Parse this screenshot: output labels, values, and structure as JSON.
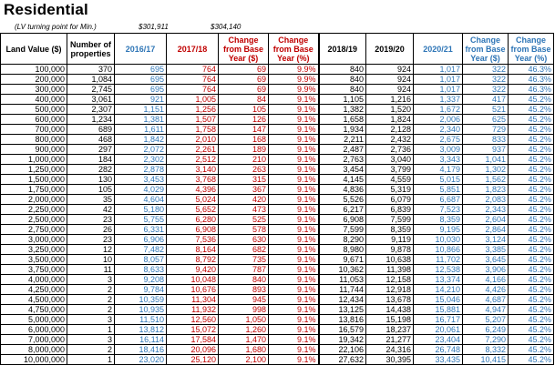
{
  "title": "Residential",
  "note": {
    "label": "(LV turning point for Min.)",
    "value_1": "$301,911",
    "value_2": "$304,140"
  },
  "colors": {
    "black": "#000000",
    "blue": "#2e75b6",
    "red": "#c00000"
  },
  "columns": [
    {
      "label": "Land Value ($)",
      "color": "black"
    },
    {
      "label": "Number of properties",
      "color": "black"
    },
    {
      "label": "2016/17",
      "color": "blue"
    },
    {
      "label": "2017/18",
      "color": "red"
    },
    {
      "label": "Change from Base Year ($)",
      "color": "red"
    },
    {
      "label": "Change from Base Year (%)",
      "color": "red"
    },
    {
      "label": "2018/19",
      "color": "black"
    },
    {
      "label": "2019/20",
      "color": "black"
    },
    {
      "label": "2020/21",
      "color": "blue"
    },
    {
      "label": "Change from Base Year ($)",
      "color": "blue"
    },
    {
      "label": "Change from Base Year (%)",
      "color": "blue"
    }
  ],
  "rows": [
    [
      "100,000",
      "370",
      "695",
      "764",
      "69",
      "9.9%",
      "840",
      "924",
      "1,017",
      "322",
      "46.3%"
    ],
    [
      "200,000",
      "1,084",
      "695",
      "764",
      "69",
      "9.9%",
      "840",
      "924",
      "1,017",
      "322",
      "46.3%"
    ],
    [
      "300,000",
      "2,745",
      "695",
      "764",
      "69",
      "9.9%",
      "840",
      "924",
      "1,017",
      "322",
      "46.3%"
    ],
    [
      "400,000",
      "3,061",
      "921",
      "1,005",
      "84",
      "9.1%",
      "1,105",
      "1,216",
      "1,337",
      "417",
      "45.2%"
    ],
    [
      "500,000",
      "2,307",
      "1,151",
      "1,256",
      "105",
      "9.1%",
      "1,382",
      "1,520",
      "1,672",
      "521",
      "45.2%"
    ],
    [
      "600,000",
      "1,234",
      "1,381",
      "1,507",
      "126",
      "9.1%",
      "1,658",
      "1,824",
      "2,006",
      "625",
      "45.2%"
    ],
    [
      "700,000",
      "689",
      "1,611",
      "1,758",
      "147",
      "9.1%",
      "1,934",
      "2,128",
      "2,340",
      "729",
      "45.2%"
    ],
    [
      "800,000",
      "468",
      "1,842",
      "2,010",
      "168",
      "9.1%",
      "2,211",
      "2,432",
      "2,675",
      "833",
      "45.2%"
    ],
    [
      "900,000",
      "297",
      "2,072",
      "2,261",
      "189",
      "9.1%",
      "2,487",
      "2,736",
      "3,009",
      "937",
      "45.2%"
    ],
    [
      "1,000,000",
      "184",
      "2,302",
      "2,512",
      "210",
      "9.1%",
      "2,763",
      "3,040",
      "3,343",
      "1,041",
      "45.2%"
    ],
    [
      "1,250,000",
      "282",
      "2,878",
      "3,140",
      "263",
      "9.1%",
      "3,454",
      "3,799",
      "4,179",
      "1,302",
      "45.2%"
    ],
    [
      "1,500,000",
      "130",
      "3,453",
      "3,768",
      "315",
      "9.1%",
      "4,145",
      "4,559",
      "5,015",
      "1,562",
      "45.2%"
    ],
    [
      "1,750,000",
      "105",
      "4,029",
      "4,396",
      "367",
      "9.1%",
      "4,836",
      "5,319",
      "5,851",
      "1,823",
      "45.2%"
    ],
    [
      "2,000,000",
      "35",
      "4,604",
      "5,024",
      "420",
      "9.1%",
      "5,526",
      "6,079",
      "6,687",
      "2,083",
      "45.2%"
    ],
    [
      "2,250,000",
      "42",
      "5,180",
      "5,652",
      "473",
      "9.1%",
      "6,217",
      "6,839",
      "7,523",
      "2,343",
      "45.2%"
    ],
    [
      "2,500,000",
      "23",
      "5,755",
      "6,280",
      "525",
      "9.1%",
      "6,908",
      "7,599",
      "8,359",
      "2,604",
      "45.2%"
    ],
    [
      "2,750,000",
      "26",
      "6,331",
      "6,908",
      "578",
      "9.1%",
      "7,599",
      "8,359",
      "9,195",
      "2,864",
      "45.2%"
    ],
    [
      "3,000,000",
      "23",
      "6,906",
      "7,536",
      "630",
      "9.1%",
      "8,290",
      "9,119",
      "10,030",
      "3,124",
      "45.2%"
    ],
    [
      "3,250,000",
      "12",
      "7,482",
      "8,164",
      "682",
      "9.1%",
      "8,980",
      "9,878",
      "10,866",
      "3,385",
      "45.2%"
    ],
    [
      "3,500,000",
      "10",
      "8,057",
      "8,792",
      "735",
      "9.1%",
      "9,671",
      "10,638",
      "11,702",
      "3,645",
      "45.2%"
    ],
    [
      "3,750,000",
      "11",
      "8,633",
      "9,420",
      "787",
      "9.1%",
      "10,362",
      "11,398",
      "12,538",
      "3,906",
      "45.2%"
    ],
    [
      "4,000,000",
      "3",
      "9,208",
      "10,048",
      "840",
      "9.1%",
      "11,053",
      "12,158",
      "13,374",
      "4,166",
      "45.2%"
    ],
    [
      "4,250,000",
      "2",
      "9,784",
      "10,676",
      "893",
      "9.1%",
      "11,744",
      "12,918",
      "14,210",
      "4,426",
      "45.2%"
    ],
    [
      "4,500,000",
      "2",
      "10,359",
      "11,304",
      "945",
      "9.1%",
      "12,434",
      "13,678",
      "15,046",
      "4,687",
      "45.2%"
    ],
    [
      "4,750,000",
      "2",
      "10,935",
      "11,932",
      "998",
      "9.1%",
      "13,125",
      "14,438",
      "15,881",
      "4,947",
      "45.2%"
    ],
    [
      "5,000,000",
      "3",
      "11,510",
      "12,560",
      "1,050",
      "9.1%",
      "13,816",
      "15,198",
      "16,717",
      "5,207",
      "45.2%"
    ],
    [
      "6,000,000",
      "1",
      "13,812",
      "15,072",
      "1,260",
      "9.1%",
      "16,579",
      "18,237",
      "20,061",
      "6,249",
      "45.2%"
    ],
    [
      "7,000,000",
      "3",
      "16,114",
      "17,584",
      "1,470",
      "9.1%",
      "19,342",
      "21,277",
      "23,404",
      "7,290",
      "45.2%"
    ],
    [
      "8,000,000",
      "2",
      "18,416",
      "20,096",
      "1,680",
      "9.1%",
      "22,106",
      "24,316",
      "26,748",
      "8,332",
      "45.2%"
    ],
    [
      "10,000,000",
      "1",
      "23,020",
      "25,120",
      "2,100",
      "9.1%",
      "27,632",
      "30,395",
      "33,435",
      "10,415",
      "45.2%"
    ]
  ]
}
